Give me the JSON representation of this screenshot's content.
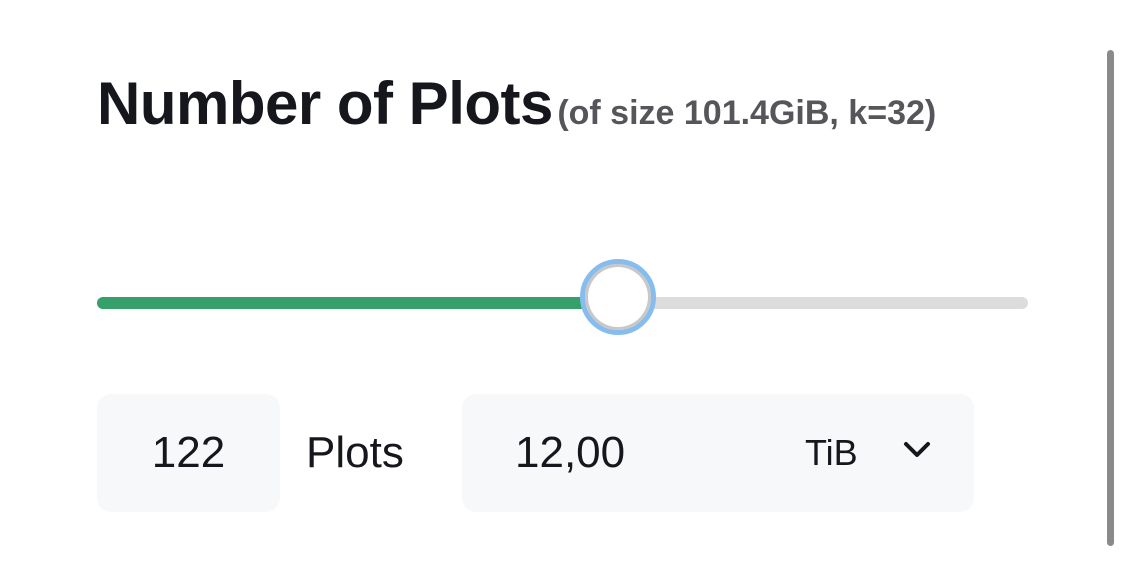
{
  "header": {
    "title": "Number of Plots",
    "subtitle": "(of size 101.4GiB, k=32)"
  },
  "slider": {
    "fraction": 0.56,
    "fill_color": "#35a06a",
    "thumb_ring_color": "#86bdee"
  },
  "plots_input": {
    "value": "122",
    "unit_label": "Plots"
  },
  "size_input": {
    "value": "12,00",
    "unit": "TiB",
    "unit_icon": "chevron-down-icon"
  }
}
